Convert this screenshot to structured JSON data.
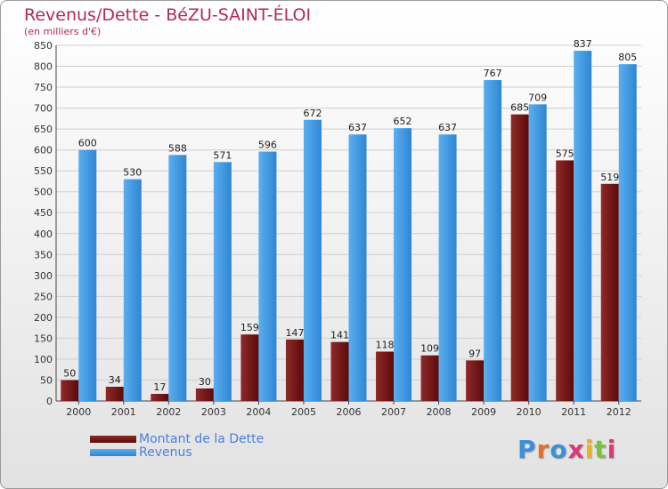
{
  "title": "Revenus/Dette - BéZU-SAINT-ÉLOI",
  "subtitle": "(en milliers d'€)",
  "logo_text": "Proxiti",
  "colors": {
    "dette": "#7a1414",
    "revenus": "#3b96e0",
    "title": "#b4295c",
    "legend_text": "#4a7fe0"
  },
  "chart_data": {
    "type": "bar",
    "title": "Revenus/Dette - BéZU-SAINT-ÉLOI",
    "ylabel": "(en milliers d'€)",
    "xlabel": "",
    "ylim": [
      0,
      850
    ],
    "ytick_step": 50,
    "grid": true,
    "legend": "bottom-left",
    "categories": [
      "2000",
      "2001",
      "2002",
      "2003",
      "2004",
      "2005",
      "2006",
      "2007",
      "2008",
      "2009",
      "2010",
      "2011",
      "2012"
    ],
    "series": [
      {
        "name": "Montant de la Dette",
        "values": [
          50,
          34,
          17,
          30,
          159,
          147,
          141,
          118,
          109,
          97,
          685,
          575,
          519
        ]
      },
      {
        "name": "Revenus",
        "values": [
          600,
          530,
          588,
          571,
          596,
          672,
          637,
          652,
          637,
          767,
          709,
          837,
          805
        ]
      }
    ]
  }
}
